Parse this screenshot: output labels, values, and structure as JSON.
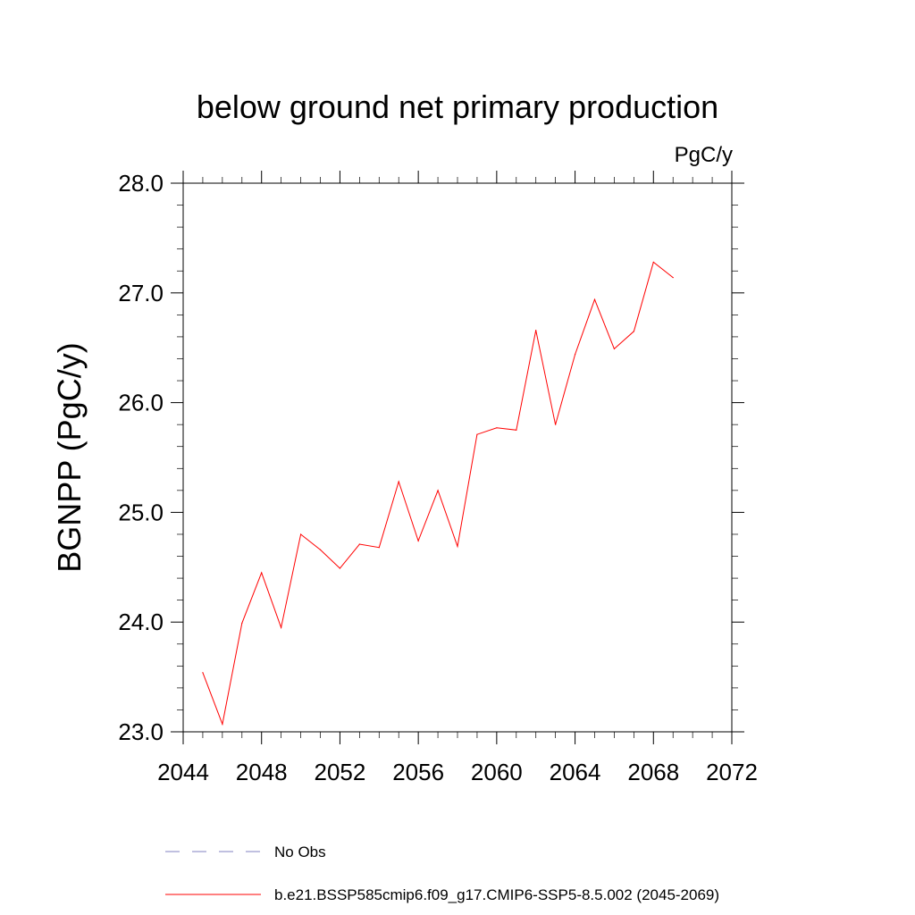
{
  "chart_data": {
    "type": "line",
    "title": "below ground net primary production",
    "units_label": "PgC/y",
    "ylabel": "BGNPP  (PgC/y)",
    "xlabel": "",
    "xlim": [
      2044,
      2072
    ],
    "ylim": [
      23.0,
      28.0
    ],
    "x_ticks": [
      2044,
      2048,
      2052,
      2056,
      2060,
      2064,
      2068,
      2072
    ],
    "x_tick_labels": [
      "2044",
      "2048",
      "2052",
      "2056",
      "2060",
      "2064",
      "2068",
      "2072"
    ],
    "y_ticks": [
      23.0,
      24.0,
      25.0,
      26.0,
      27.0,
      28.0
    ],
    "y_tick_labels": [
      "23.0",
      "24.0",
      "25.0",
      "26.0",
      "27.0",
      "28.0"
    ],
    "grid": false,
    "legend_position": "bottom",
    "series": [
      {
        "name": "b.e21.BSSP585cmip6.f09_g17.CMIP6-SSP5-8.5.002 (2045-2069)",
        "color": "#ff0000",
        "style": "solid",
        "x": [
          2045,
          2046,
          2047,
          2048,
          2049,
          2050,
          2051,
          2052,
          2053,
          2054,
          2055,
          2056,
          2057,
          2058,
          2059,
          2060,
          2061,
          2062,
          2063,
          2064,
          2065,
          2066,
          2067,
          2068,
          2069
        ],
        "y": [
          23.54,
          23.07,
          23.99,
          24.45,
          23.95,
          24.8,
          24.66,
          24.49,
          24.71,
          24.68,
          25.28,
          24.74,
          25.2,
          24.69,
          25.71,
          25.77,
          25.75,
          26.66,
          25.8,
          26.44,
          26.94,
          26.49,
          26.65,
          27.28,
          27.14
        ]
      }
    ],
    "legend": [
      {
        "label": "No Obs",
        "color": "#8080c0",
        "style": "dashed"
      },
      {
        "label": "b.e21.BSSP585cmip6.f09_g17.CMIP6-SSP5-8.5.002 (2045-2069)",
        "color": "#ff0000",
        "style": "solid"
      }
    ]
  }
}
